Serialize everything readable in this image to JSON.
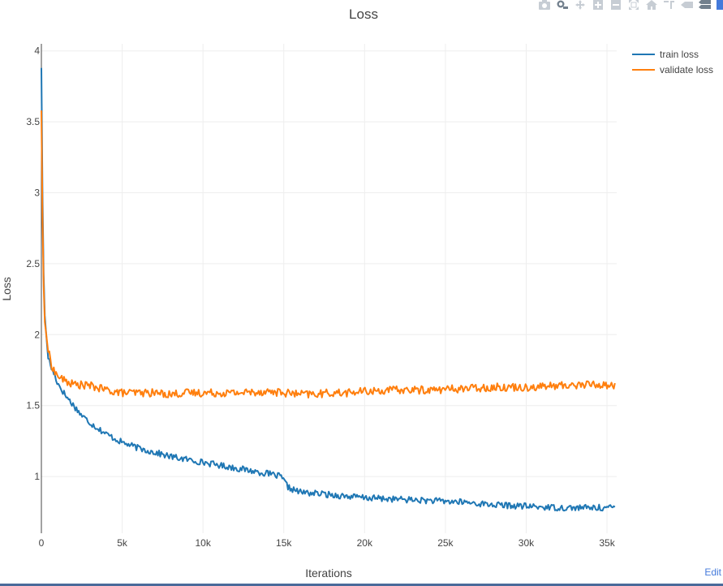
{
  "toolbar": {
    "icons": [
      "camera-icon",
      "zoom-icon",
      "pan-icon",
      "zoom-in-icon",
      "zoom-out-icon",
      "autoscale-icon",
      "reset-axes-icon",
      "spike-lines-icon",
      "hover-closest-icon",
      "hover-compare-icon",
      "plotly-logo-icon"
    ]
  },
  "edit_link": "Edit",
  "colors": {
    "train": "#1f77b4",
    "validate": "#ff7f0e",
    "grid": "#eeeeee",
    "axis": "#444444"
  },
  "chart_data": {
    "type": "line",
    "title": "Loss",
    "xlabel": "Iterations",
    "ylabel": "Loss",
    "xlim": [
      0,
      35600
    ],
    "ylim": [
      0.6,
      4.05
    ],
    "xticks": [
      0,
      5000,
      10000,
      15000,
      20000,
      25000,
      30000,
      35000
    ],
    "xtick_labels": [
      "0",
      "5k",
      "10k",
      "15k",
      "20k",
      "25k",
      "30k",
      "35k"
    ],
    "yticks": [
      1,
      1.5,
      2,
      2.5,
      3,
      3.5,
      4
    ],
    "ytick_labels": [
      "1",
      "1.5",
      "2",
      "2.5",
      "3",
      "3.5",
      "4"
    ],
    "grid": true,
    "legend": "top-right",
    "series": [
      {
        "name": "train loss",
        "x": [
          0,
          100,
          200,
          400,
          600,
          800,
          1000,
          1500,
          2000,
          2500,
          3000,
          3500,
          4000,
          5000,
          6000,
          7000,
          8000,
          9000,
          10000,
          11000,
          12000,
          13000,
          14000,
          14800,
          15000,
          15300,
          16000,
          17000,
          18000,
          19000,
          20000,
          22000,
          24000,
          26000,
          28000,
          30000,
          32000,
          34000,
          35500
        ],
        "y": [
          3.88,
          2.6,
          2.15,
          1.85,
          1.77,
          1.72,
          1.66,
          1.57,
          1.5,
          1.43,
          1.38,
          1.34,
          1.3,
          1.24,
          1.2,
          1.17,
          1.14,
          1.12,
          1.1,
          1.08,
          1.06,
          1.04,
          1.02,
          1.0,
          0.97,
          0.92,
          0.89,
          0.88,
          0.87,
          0.86,
          0.85,
          0.84,
          0.83,
          0.82,
          0.8,
          0.79,
          0.78,
          0.78,
          0.78
        ]
      },
      {
        "name": "validate loss",
        "x": [
          0,
          100,
          200,
          400,
          600,
          800,
          1000,
          1500,
          2000,
          3000,
          4000,
          5000,
          6000,
          7000,
          8000,
          9000,
          10000,
          12000,
          14000,
          15000,
          16000,
          17000,
          18000,
          19000,
          20000,
          22000,
          24000,
          26000,
          28000,
          30000,
          32000,
          34000,
          35500
        ],
        "y": [
          3.58,
          2.5,
          2.1,
          1.9,
          1.8,
          1.74,
          1.71,
          1.67,
          1.65,
          1.64,
          1.61,
          1.59,
          1.59,
          1.59,
          1.58,
          1.59,
          1.59,
          1.59,
          1.6,
          1.59,
          1.58,
          1.58,
          1.59,
          1.59,
          1.6,
          1.61,
          1.61,
          1.62,
          1.63,
          1.63,
          1.64,
          1.65,
          1.64
        ]
      }
    ]
  }
}
